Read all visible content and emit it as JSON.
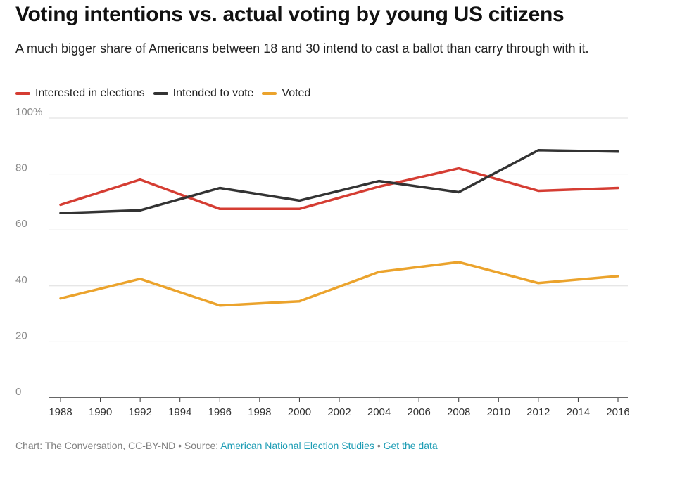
{
  "title": "Voting intentions vs. actual voting by young US citizens",
  "subtitle": "A much bigger share of Americans between 18 and 30 intend to cast a ballot than carry through with it.",
  "legend": [
    {
      "label": "Interested in elections",
      "color": "#d53d33"
    },
    {
      "label": "Intended to vote",
      "color": "#333333"
    },
    {
      "label": "Voted",
      "color": "#eba32c"
    }
  ],
  "footer": {
    "credit": "Chart: The Conversation, CC-BY-ND",
    "separator": " • ",
    "source_prefix": "Source: ",
    "source_link": "American National Election Studies",
    "data_link": "Get the data"
  },
  "chart_data": {
    "type": "line",
    "title": "Voting intentions vs. actual voting by young US citizens",
    "xlabel": "",
    "ylabel": "",
    "x": [
      1988,
      1992,
      1996,
      2000,
      2004,
      2008,
      2012,
      2016
    ],
    "xticks": [
      1988,
      1990,
      1992,
      1994,
      1996,
      1998,
      2000,
      2002,
      2004,
      2006,
      2008,
      2010,
      2012,
      2014,
      2016
    ],
    "xlim": [
      1988,
      2016
    ],
    "ylim": [
      0,
      100
    ],
    "yticks": [
      {
        "value": 0,
        "label": "0"
      },
      {
        "value": 20,
        "label": "20"
      },
      {
        "value": 40,
        "label": "40"
      },
      {
        "value": 60,
        "label": "60"
      },
      {
        "value": 80,
        "label": "80"
      },
      {
        "value": 100,
        "label": "100%"
      }
    ],
    "grid": true,
    "series": [
      {
        "name": "Interested in elections",
        "color": "#d53d33",
        "values": [
          69,
          78,
          67.5,
          67.5,
          75.5,
          82,
          74,
          75
        ]
      },
      {
        "name": "Intended to vote",
        "color": "#333333",
        "values": [
          66,
          67,
          75,
          70.5,
          77.5,
          73.5,
          88.5,
          88
        ]
      },
      {
        "name": "Voted",
        "color": "#eba32c",
        "values": [
          35.5,
          42.5,
          33,
          34.5,
          45,
          48.5,
          41,
          43.5
        ]
      }
    ]
  }
}
